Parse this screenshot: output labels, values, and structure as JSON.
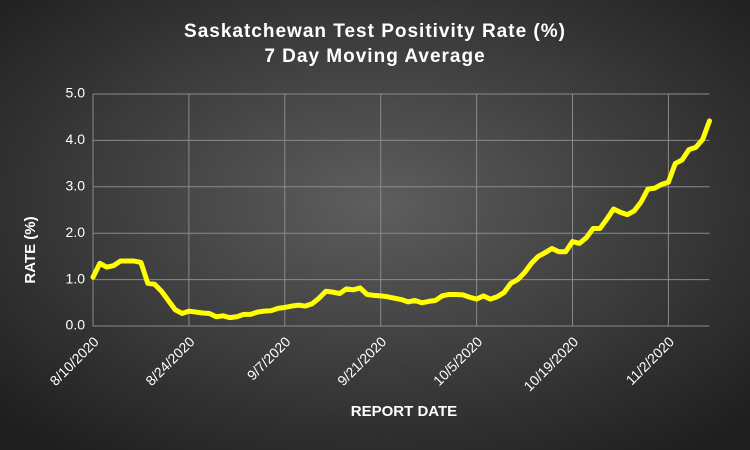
{
  "chart_data": {
    "type": "line",
    "title": "Saskatchewan Test Positivity Rate (%)",
    "subtitle": "7 Day Moving Average",
    "x_label": "REPORT DATE",
    "y_label": "RATE (%)",
    "categories": [
      "8/10/2020",
      null,
      null,
      null,
      null,
      null,
      null,
      null,
      null,
      null,
      null,
      null,
      null,
      null,
      "8/24/2020",
      null,
      null,
      null,
      null,
      null,
      null,
      null,
      null,
      null,
      null,
      null,
      null,
      null,
      "9/7/2020",
      null,
      null,
      null,
      null,
      null,
      null,
      null,
      null,
      null,
      null,
      null,
      null,
      null,
      "9/21/2020",
      null,
      null,
      null,
      null,
      null,
      null,
      null,
      null,
      null,
      null,
      null,
      null,
      null,
      "10/5/2020",
      null,
      null,
      null,
      null,
      null,
      null,
      null,
      null,
      null,
      null,
      null,
      null,
      null,
      "10/19/2020",
      null,
      null,
      null,
      null,
      null,
      null,
      null,
      null,
      null,
      null,
      null,
      null,
      null,
      "11/2/2020",
      null,
      null,
      null,
      null,
      null,
      null
    ],
    "series": [
      {
        "name": "Test Positivity Rate",
        "color": "#ffff00",
        "values": [
          1.05,
          1.35,
          1.27,
          1.3,
          1.4,
          1.4,
          1.4,
          1.37,
          0.92,
          0.9,
          0.75,
          0.55,
          0.35,
          0.27,
          0.32,
          0.3,
          0.28,
          0.27,
          0.2,
          0.22,
          0.18,
          0.2,
          0.25,
          0.25,
          0.3,
          0.32,
          0.33,
          0.38,
          0.4,
          0.43,
          0.45,
          0.43,
          0.48,
          0.6,
          0.75,
          0.73,
          0.7,
          0.8,
          0.78,
          0.82,
          0.68,
          0.66,
          0.65,
          0.63,
          0.6,
          0.57,
          0.52,
          0.55,
          0.5,
          0.53,
          0.55,
          0.65,
          0.68,
          0.68,
          0.67,
          0.62,
          0.58,
          0.65,
          0.58,
          0.63,
          0.72,
          0.92,
          1.0,
          1.15,
          1.35,
          1.5,
          1.58,
          1.67,
          1.6,
          1.6,
          1.82,
          1.78,
          1.9,
          2.1,
          2.1,
          2.3,
          2.52,
          2.45,
          2.4,
          2.48,
          2.67,
          2.95,
          2.97,
          3.05,
          3.1,
          3.5,
          3.58,
          3.8,
          3.85,
          4.02,
          4.42
        ]
      }
    ],
    "ylim": [
      0,
      5
    ],
    "yticks": [
      {
        "value": 0,
        "label": "0.0"
      },
      {
        "value": 1,
        "label": "1.0"
      },
      {
        "value": 2,
        "label": "2.0"
      },
      {
        "value": 3,
        "label": "3.0"
      },
      {
        "value": 4,
        "label": "4.0"
      },
      {
        "value": 5,
        "label": "5.0"
      }
    ],
    "grid": true,
    "legend": false
  }
}
